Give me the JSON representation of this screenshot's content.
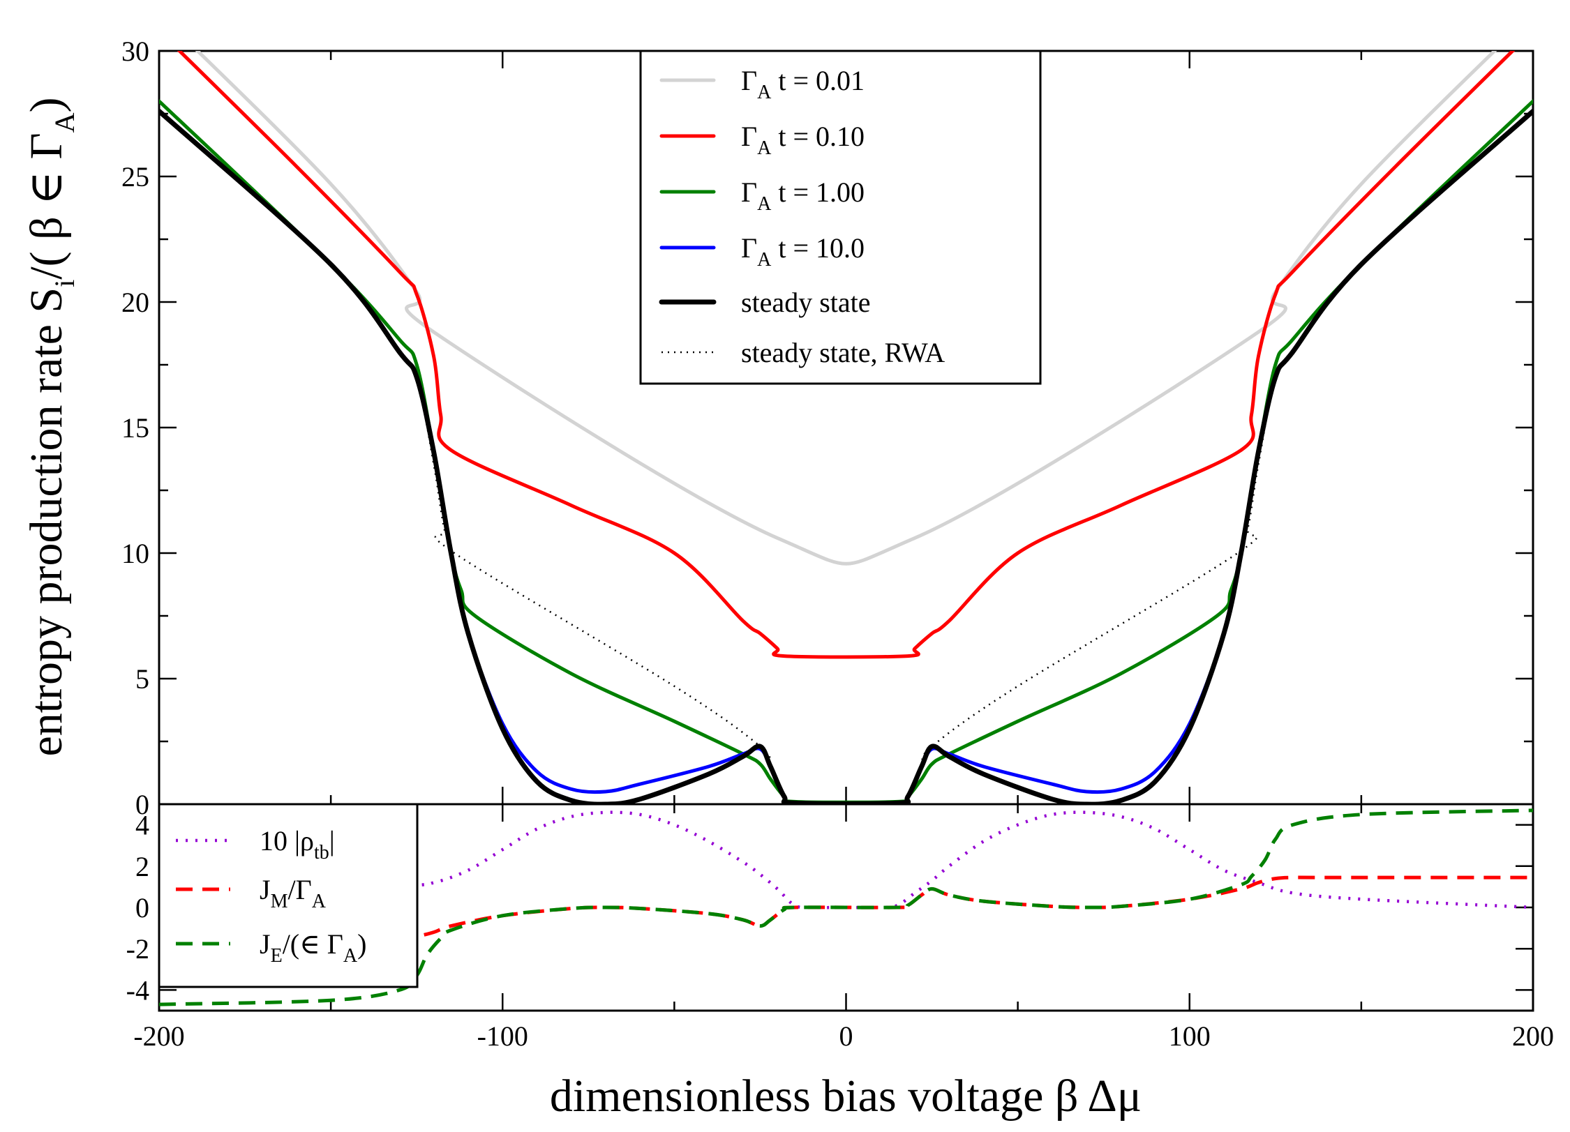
{
  "chart_data": [
    {
      "type": "line",
      "panel": "top",
      "ylabel": "entropy production rate",
      "ylabel_math": "Ṡ_i/( β ∈ Γ_A)",
      "xlim": [
        -200,
        200
      ],
      "ylim": [
        0,
        30
      ],
      "x_ticks": [
        -200,
        -100,
        0,
        100,
        200
      ],
      "y_ticks": [
        0,
        5,
        10,
        15,
        20,
        25,
        30
      ],
      "legend_position": "top-center",
      "series": [
        {
          "name": "Γ_A t = 0.01",
          "legend_label": "t = 0.01",
          "color": "#d3d3d3",
          "style": "solid",
          "x": [
            -200,
            -150,
            -125,
            -120,
            -20,
            20,
            120,
            125,
            150,
            200
          ],
          "y": [
            31.5,
            24.7,
            20.4,
            18.8,
            10.6,
            10.6,
            18.8,
            20.4,
            24.7,
            31.5
          ]
        },
        {
          "name": "Γ_A t = 0.10",
          "legend_label": "t = 0.10",
          "color": "#ff0000",
          "style": "solid",
          "x": [
            -200,
            -160,
            -130,
            -125,
            -120,
            -118,
            -115,
            -80,
            -50,
            -30,
            -25,
            -20,
            -18,
            18,
            20,
            25,
            30,
            50,
            80,
            115,
            118,
            120,
            125,
            130,
            160,
            200
          ],
          "y": [
            30.8,
            25.4,
            21.2,
            20.3,
            17.8,
            15.5,
            14.1,
            11.9,
            10.0,
            7.3,
            6.8,
            6.2,
            5.9,
            5.9,
            6.2,
            6.8,
            7.3,
            10.0,
            11.9,
            14.1,
            15.5,
            17.8,
            20.3,
            21.2,
            25.4,
            30.8
          ]
        },
        {
          "name": "Γ_A t = 1.00",
          "legend_label": "t = 1.00",
          "color": "#008000",
          "style": "solid",
          "x": [
            -200,
            -150,
            -130,
            -125,
            -120,
            -115,
            -112,
            -108,
            -80,
            -50,
            -30,
            -25,
            -22,
            -18,
            -15,
            15,
            18,
            22,
            25,
            30,
            50,
            80,
            108,
            112,
            115,
            120,
            125,
            130,
            150,
            200
          ],
          "y": [
            28,
            21.5,
            18.5,
            17.5,
            14.0,
            10.0,
            8.5,
            7.5,
            5.2,
            3.3,
            2.0,
            1.6,
            1.0,
            0.3,
            0.1,
            0.1,
            0.3,
            1.0,
            1.6,
            2.0,
            3.3,
            5.2,
            7.5,
            8.5,
            10.0,
            14.0,
            17.5,
            18.5,
            21.5,
            28
          ]
        },
        {
          "name": "Γ_A t = 10.0",
          "legend_label": "t = 10.0",
          "color": "#0000ff",
          "style": "solid",
          "x": [
            -200,
            -150,
            -130,
            -125,
            -120,
            -115,
            -110,
            -100,
            -90,
            -80,
            -70,
            -60,
            -40,
            -30,
            -25,
            -22,
            -18,
            -15,
            15,
            18,
            22,
            25,
            30,
            40,
            60,
            70,
            80,
            90,
            100,
            110,
            115,
            120,
            125,
            130,
            150,
            200
          ],
          "y": [
            27.6,
            21.5,
            18.0,
            17.0,
            14.0,
            10.0,
            6.8,
            3.2,
            1.3,
            0.6,
            0.5,
            0.8,
            1.5,
            2.0,
            2.2,
            1.5,
            0.3,
            0.05,
            0.05,
            0.3,
            1.5,
            2.2,
            2.0,
            1.5,
            0.8,
            0.5,
            0.6,
            1.3,
            3.2,
            6.8,
            10.0,
            14.0,
            17.0,
            18.0,
            21.5,
            27.6
          ]
        },
        {
          "name": "steady state",
          "legend_label": "steady state",
          "color": "#000000",
          "style": "thick",
          "x": [
            -200,
            -150,
            -130,
            -125,
            -120,
            -115,
            -110,
            -100,
            -90,
            -80,
            -70,
            -60,
            -40,
            -30,
            -25,
            -22,
            -18,
            -15,
            15,
            18,
            22,
            25,
            30,
            40,
            60,
            70,
            80,
            90,
            100,
            110,
            115,
            120,
            125,
            130,
            150,
            200
          ],
          "y": [
            27.6,
            21.5,
            18.0,
            17.0,
            14.0,
            10.0,
            6.8,
            3.0,
            0.9,
            0.15,
            0.0,
            0.2,
            1.2,
            1.9,
            2.3,
            1.5,
            0.3,
            0.05,
            0.05,
            0.3,
            1.5,
            2.3,
            1.9,
            1.2,
            0.2,
            0.0,
            0.15,
            0.9,
            3.0,
            6.8,
            10.0,
            14.0,
            17.0,
            18.0,
            21.5,
            27.6
          ]
        },
        {
          "name": "steady state, RWA",
          "legend_label": "steady state, RWA",
          "color": "#000000",
          "style": "dotted",
          "x": [
            -200,
            -150,
            -130,
            -125,
            -120,
            -117,
            -114,
            -50,
            -25,
            -22,
            -18,
            -15,
            15,
            18,
            22,
            25,
            50,
            114,
            117,
            120,
            125,
            130,
            150,
            200
          ],
          "y": [
            27.6,
            21.5,
            18.0,
            17.0,
            13.5,
            11.0,
            10.0,
            4.7,
            2.3,
            1.5,
            0.3,
            0.05,
            0.05,
            0.3,
            1.5,
            2.3,
            4.7,
            10.0,
            11.0,
            13.5,
            17.0,
            18.0,
            21.5,
            27.6
          ]
        }
      ]
    },
    {
      "type": "line",
      "panel": "bottom",
      "xlabel": "dimensionless bias voltage β Δμ",
      "xlim": [
        -200,
        200
      ],
      "ylim": [
        -5,
        5
      ],
      "x_ticks": [
        -200,
        -100,
        0,
        100,
        200
      ],
      "y_ticks": [
        -4,
        -2,
        0,
        2,
        4
      ],
      "legend_position": "left",
      "series": [
        {
          "name": "10 |ρ_tb|",
          "legend_label": "10 |ρ",
          "legend_sub": "tb",
          "legend_suffix": "|",
          "color": "#9400d3",
          "style": "dotted",
          "x": [
            -200,
            -130,
            -120,
            -110,
            -100,
            -90,
            -80,
            -70,
            -60,
            -50,
            -40,
            -30,
            -25,
            -20,
            -15,
            -10,
            0,
            10,
            15,
            20,
            25,
            30,
            40,
            50,
            60,
            70,
            80,
            90,
            100,
            110,
            120,
            130,
            150,
            200
          ],
          "y": [
            0,
            1.0,
            1.2,
            1.8,
            2.8,
            3.8,
            4.4,
            4.6,
            4.5,
            4.0,
            3.2,
            2.2,
            1.6,
            0.9,
            0.1,
            0.0,
            0.0,
            0.0,
            0.1,
            0.7,
            1.3,
            2.0,
            3.2,
            4.0,
            4.5,
            4.6,
            4.4,
            3.8,
            2.8,
            1.8,
            1.2,
            0.7,
            0.4,
            0.0
          ]
        },
        {
          "name": "J_M/Γ_A",
          "legend_label": "J",
          "legend_sub": "M",
          "legend_suffix": "/Γ",
          "legend_sub2": "A",
          "color": "#ff0000",
          "style": "dashed",
          "x": [
            -200,
            -140,
            -130,
            -125,
            -120,
            -115,
            -100,
            -80,
            -70,
            -60,
            -40,
            -30,
            -25,
            -22,
            -18,
            -15,
            15,
            18,
            22,
            25,
            30,
            40,
            60,
            70,
            80,
            100,
            115,
            120,
            125,
            130,
            140,
            200
          ],
          "y": [
            -1.45,
            -1.45,
            -1.45,
            -1.4,
            -1.2,
            -0.9,
            -0.4,
            -0.05,
            0.0,
            -0.05,
            -0.3,
            -0.6,
            -0.9,
            -0.6,
            -0.1,
            0.0,
            0.0,
            0.1,
            0.6,
            0.9,
            0.6,
            0.3,
            0.05,
            0.0,
            0.05,
            0.4,
            0.9,
            1.2,
            1.4,
            1.45,
            1.45,
            1.45
          ]
        },
        {
          "name": "J_E/(∈ Γ_A)",
          "legend_label": "J",
          "legend_sub": "E",
          "legend_suffix": "/(∈ Γ",
          "legend_sub2": "A",
          "legend_suffix2": ")",
          "color": "#008000",
          "style": "dashed",
          "x": [
            -200,
            -150,
            -130,
            -125,
            -122,
            -118,
            -115,
            -100,
            -80,
            -70,
            -60,
            -40,
            -30,
            -25,
            -22,
            -18,
            -15,
            15,
            18,
            22,
            25,
            30,
            40,
            60,
            70,
            80,
            100,
            115,
            118,
            122,
            125,
            130,
            150,
            200
          ],
          "y": [
            -4.7,
            -4.5,
            -4.0,
            -3.3,
            -2.3,
            -1.5,
            -1.1,
            -0.4,
            -0.05,
            0.0,
            -0.05,
            -0.3,
            -0.6,
            -0.9,
            -0.6,
            -0.1,
            0.0,
            0.0,
            0.1,
            0.6,
            0.9,
            0.6,
            0.3,
            0.05,
            0.0,
            0.05,
            0.4,
            1.1,
            1.5,
            2.3,
            3.3,
            4.0,
            4.5,
            4.7
          ]
        }
      ]
    }
  ],
  "labels": {
    "ylabel_text": "entropy production rate",
    "xlabel_text": "dimensionless bias voltage β Δμ",
    "ylabel_S": "S",
    "ylabel_dot": "·",
    "ylabel_sub_i": "i",
    "ylabel_rest": "/( β ∈ Γ",
    "ylabel_sub_A": "A",
    "ylabel_close": ")",
    "gamma": "Γ",
    "sub_A": "A"
  }
}
